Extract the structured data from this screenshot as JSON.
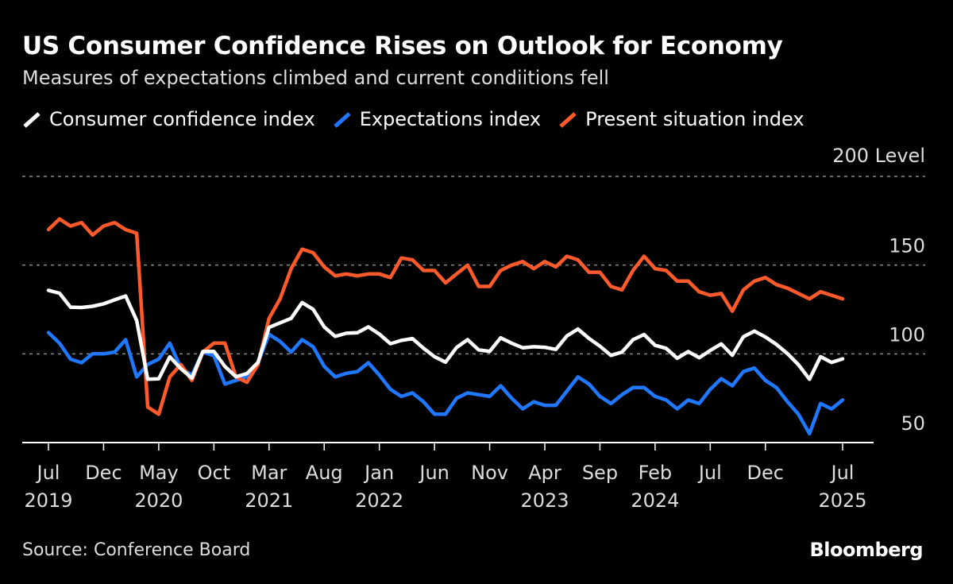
{
  "chart_data": {
    "type": "line",
    "title": "US Consumer Confidence Rises on Outlook for Economy",
    "subtitle": "Measures of expectations climbed and current condiitions fell",
    "ylabel": "Level",
    "ylim": [
      50,
      200
    ],
    "yticks": [
      50,
      100,
      150,
      200
    ],
    "ytick_labels": [
      "50",
      "100",
      "150",
      "200 Level"
    ],
    "grid": true,
    "legend": "top-left",
    "start": "2019-07",
    "frequency": "monthly",
    "xticks": [
      {
        "month": "2019-07",
        "label": "Jul",
        "year": "2019"
      },
      {
        "month": "2019-12",
        "label": "Dec",
        "year": ""
      },
      {
        "month": "2020-05",
        "label": "May",
        "year": "2020"
      },
      {
        "month": "2020-10",
        "label": "Oct",
        "year": ""
      },
      {
        "month": "2021-03",
        "label": "Mar",
        "year": "2021"
      },
      {
        "month": "2021-08",
        "label": "Aug",
        "year": ""
      },
      {
        "month": "2022-01",
        "label": "Jan",
        "year": "2022"
      },
      {
        "month": "2022-06",
        "label": "Jun",
        "year": ""
      },
      {
        "month": "2022-11",
        "label": "Nov",
        "year": ""
      },
      {
        "month": "2023-04",
        "label": "Apr",
        "year": "2023"
      },
      {
        "month": "2023-09",
        "label": "Sep",
        "year": ""
      },
      {
        "month": "2024-02",
        "label": "Feb",
        "year": "2024"
      },
      {
        "month": "2024-07",
        "label": "Jul",
        "year": ""
      },
      {
        "month": "2024-12",
        "label": "Dec",
        "year": ""
      },
      {
        "month": "2025-07",
        "label": "Jul",
        "year": "2025"
      }
    ],
    "series": [
      {
        "name": "Consumer confidence index",
        "color": "#ffffff",
        "values": [
          135.8,
          134.2,
          126.3,
          126.1,
          126.8,
          128.2,
          130.4,
          132.6,
          118.8,
          85.7,
          85.9,
          98.3,
          91.7,
          86.3,
          101.3,
          101.4,
          92.9,
          87.1,
          88.9,
          95.2,
          114.9,
          117.5,
          120,
          128.9,
          125.1,
          115.2,
          109.8,
          111.6,
          111.9,
          115.2,
          111.1,
          105.7,
          107.6,
          108.6,
          103.2,
          98.4,
          95.3,
          103.6,
          108,
          102.2,
          101.4,
          109,
          106,
          103.4,
          104,
          103.7,
          102.5,
          110.1,
          114,
          108.7,
          104.3,
          99.1,
          101,
          108,
          110.9,
          104.8,
          103.1,
          97.5,
          101.3,
          97.8,
          101.9,
          105.6,
          99.2,
          109.6,
          112.8,
          109.5,
          105.3,
          100.1,
          93.9,
          85.7,
          98.4,
          95.2,
          97.2
        ]
      },
      {
        "name": "Expectations index",
        "color": "#1f78ff",
        "values": [
          112,
          106,
          97,
          95,
          100,
          100,
          101,
          108,
          87,
          94,
          97,
          106,
          92,
          88,
          101,
          99,
          83,
          85,
          87,
          95,
          111,
          107,
          101,
          108,
          104,
          93,
          87,
          89,
          90,
          95,
          88,
          80,
          76,
          78,
          73,
          66,
          66,
          75,
          78,
          77,
          76,
          82,
          75,
          69,
          73,
          71,
          71,
          79,
          87,
          83,
          76,
          72,
          77,
          81,
          81,
          76,
          74,
          69,
          74,
          72,
          80,
          86,
          82,
          90,
          92,
          85,
          81,
          73,
          66,
          55,
          72,
          69,
          74
        ]
      },
      {
        "name": "Present situation index",
        "color": "#ff5a2c",
        "values": [
          170,
          176,
          172,
          174,
          167,
          172,
          174,
          170,
          168,
          70,
          66,
          87,
          94,
          85,
          101,
          106,
          106,
          87,
          84,
          94,
          120,
          131,
          148,
          159,
          157,
          149,
          144,
          145,
          144,
          145,
          145,
          143,
          154,
          153,
          147,
          147,
          140,
          145,
          150,
          138,
          138,
          147,
          150,
          152,
          148,
          152,
          149,
          155,
          153,
          146,
          146,
          138,
          136,
          147,
          155,
          148,
          147,
          141,
          141,
          135,
          133,
          134,
          124,
          136,
          141,
          143,
          139,
          137,
          134,
          131,
          135,
          133,
          131
        ]
      }
    ]
  },
  "source": "Source: Conference Board",
  "logo": "Bloomberg"
}
